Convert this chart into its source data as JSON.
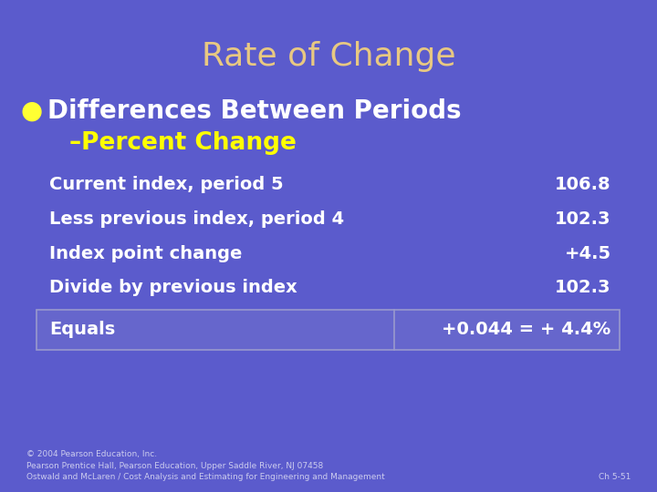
{
  "title": "Rate of Change",
  "title_color": "#E8C882",
  "background_color": "#5B5BCC",
  "bullet_text": "Differences Between Periods",
  "sub_bullet_text": "–Percent Change",
  "bullet_color": "#FFFFFF",
  "sub_bullet_color": "#FFFF00",
  "bullet_dot_color": "#FFFF33",
  "rows": [
    {
      "label": "Current index, period 5",
      "value": "106.8"
    },
    {
      "label": "Less previous index, period 4",
      "value": "102.3"
    },
    {
      "label": "Index point change",
      "value": "+4.5"
    },
    {
      "label": "Divide by previous index",
      "value": "102.3"
    },
    {
      "label": "Equals",
      "value": "+0.044 = + 4.4%"
    }
  ],
  "row_text_color": "#FFFFFF",
  "last_row_box_color": "#6666CC",
  "last_row_border_color": "#9999CC",
  "footer_left": "© 2004 Pearson Education, Inc.\nPearson Prentice Hall, Pearson Education, Upper Saddle River, NJ 07458\nOstwald and McLaren / Cost Analysis and Estimating for Engineering and Management",
  "footer_right": "Ch 5-51",
  "footer_color": "#CCCCEE",
  "title_fontsize": 26,
  "bullet_fontsize": 20,
  "sub_bullet_fontsize": 19,
  "row_fontsize": 14,
  "footer_fontsize": 6.5
}
